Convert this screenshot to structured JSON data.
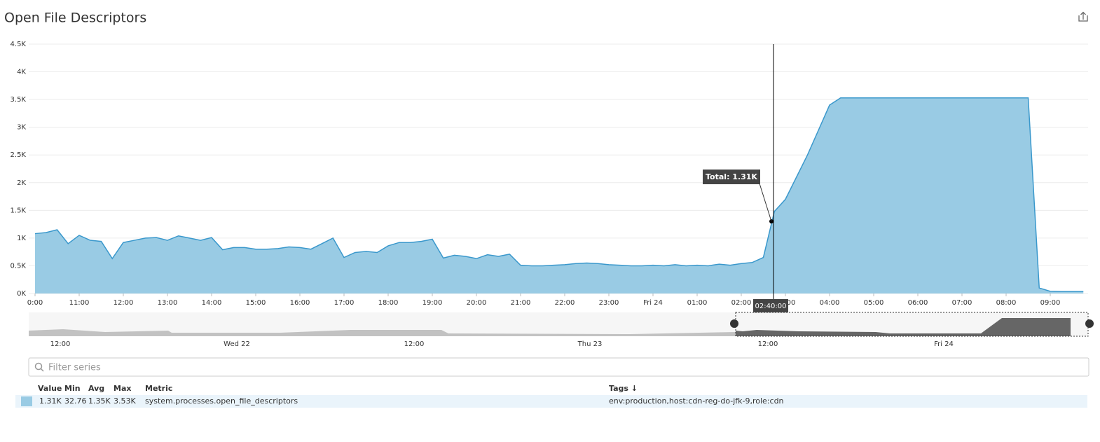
{
  "chart_data": {
    "type": "area",
    "title": "Open File Descriptors",
    "categories": [
      "0:00",
      null,
      null,
      null,
      "11:00",
      null,
      null,
      null,
      "12:00",
      null,
      null,
      null,
      "13:00",
      null,
      null,
      null,
      "14:00",
      null,
      null,
      null,
      "15:00",
      null,
      null,
      null,
      "16:00",
      null,
      null,
      null,
      "17:00",
      null,
      null,
      null,
      "18:00",
      null,
      null,
      null,
      "19:00",
      null,
      null,
      null,
      "20:00",
      null,
      null,
      null,
      "21:00",
      null,
      null,
      null,
      "22:00",
      null,
      null,
      null,
      "23:00",
      null,
      null,
      null,
      "Fri 24",
      null,
      null,
      null,
      "01:00",
      null,
      null,
      null,
      "02:00",
      null,
      null,
      null,
      "03:00",
      null,
      null,
      null,
      "04:00",
      null,
      null,
      null,
      "05:00",
      null,
      null,
      null,
      "06:00",
      null,
      null,
      null,
      "07:00",
      null,
      null,
      null,
      "08:00",
      null,
      null,
      null,
      "09:00",
      null,
      null,
      null
    ],
    "series": [
      {
        "name": "system.processes.open_file_descriptors",
        "color": "#99cbe4",
        "line_color": "#3a98cc",
        "values": [
          1080,
          1100,
          1150,
          900,
          1050,
          960,
          940,
          630,
          920,
          960,
          1000,
          1010,
          960,
          1040,
          1000,
          960,
          1010,
          790,
          830,
          830,
          800,
          800,
          810,
          840,
          830,
          800,
          900,
          1000,
          650,
          740,
          760,
          740,
          860,
          920,
          920,
          940,
          980,
          640,
          690,
          670,
          630,
          700,
          670,
          710,
          510,
          500,
          500,
          510,
          520,
          540,
          550,
          540,
          520,
          510,
          500,
          500,
          510,
          500,
          520,
          500,
          510,
          500,
          530,
          510,
          540,
          560,
          650,
          1480,
          1700,
          2100,
          2500,
          2950,
          3400,
          3530,
          3530,
          3530,
          3530,
          3530,
          3530,
          3530,
          3530,
          3530,
          3530,
          3530,
          3530,
          3530,
          3530,
          3530,
          3530,
          3530,
          3530,
          100,
          40,
          35,
          35,
          35
        ]
      }
    ],
    "ylim": [
      0,
      4500
    ],
    "yticks": [
      {
        "value": 0,
        "label": "0K"
      },
      {
        "value": 500,
        "label": "0.5K"
      },
      {
        "value": 1000,
        "label": "1K"
      },
      {
        "value": 1500,
        "label": "1.5K"
      },
      {
        "value": 2000,
        "label": "2K"
      },
      {
        "value": 2500,
        "label": "2.5K"
      },
      {
        "value": 3000,
        "label": "3K"
      },
      {
        "value": 3500,
        "label": "3.5K"
      },
      {
        "value": 4000,
        "label": "4K"
      },
      {
        "value": 4500,
        "label": "4.5K"
      }
    ],
    "grid": true,
    "tooltip": {
      "text": "Total: 1.31K",
      "time": "02:40:00"
    }
  },
  "navigator": {
    "labels": [
      "12:00",
      "Wed 22",
      "12:00",
      "Thu 23",
      "12:00",
      "Fri 24"
    ]
  },
  "filter": {
    "placeholder": "Filter series"
  },
  "legend_table": {
    "headers": [
      "Value",
      "Min",
      "Avg",
      "Max",
      "Metric",
      "Tags ↓"
    ],
    "row": {
      "value": "1.31K",
      "min": "32.76",
      "avg": "1.35K",
      "max": "3.53K",
      "tags": "env:production,host:cdn-reg-do-jfk-9,role:cdn"
    }
  }
}
